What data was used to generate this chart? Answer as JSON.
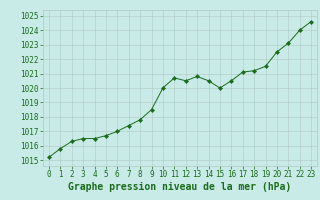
{
  "x": [
    0,
    1,
    2,
    3,
    4,
    5,
    6,
    7,
    8,
    9,
    10,
    11,
    12,
    13,
    14,
    15,
    16,
    17,
    18,
    19,
    20,
    21,
    22,
    23
  ],
  "y": [
    1015.2,
    1015.8,
    1016.3,
    1016.5,
    1016.5,
    1016.7,
    1017.0,
    1017.4,
    1017.8,
    1018.5,
    1020.0,
    1020.7,
    1020.5,
    1020.8,
    1020.5,
    1020.0,
    1020.5,
    1021.1,
    1021.2,
    1021.5,
    1022.5,
    1023.1,
    1024.0,
    1024.6
  ],
  "line_color": "#1a6b1a",
  "marker": "D",
  "marker_size": 2.2,
  "bg_color": "#c8ebe8",
  "grid_color": "#b0c8c4",
  "xlabel": "Graphe pression niveau de la mer (hPa)",
  "xlabel_fontsize": 7,
  "xlabel_color": "#1a6b1a",
  "ylabel_ticks": [
    1015,
    1016,
    1017,
    1018,
    1019,
    1020,
    1021,
    1022,
    1023,
    1024,
    1025
  ],
  "ylim": [
    1014.6,
    1025.4
  ],
  "xlim": [
    -0.5,
    23.5
  ],
  "tick_fontsize": 5.5,
  "tick_color": "#1a6b1a",
  "linewidth": 0.7
}
